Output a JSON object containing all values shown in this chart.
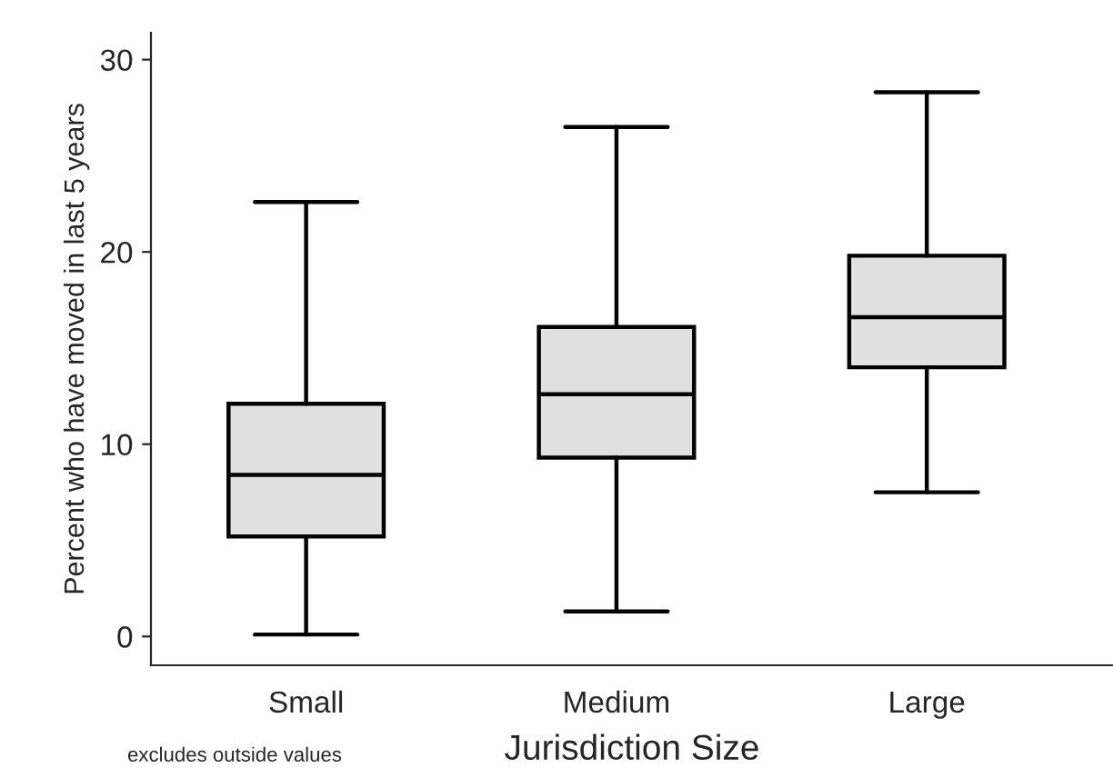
{
  "chart_data": {
    "type": "box",
    "xlabel": "Jurisdiction Size",
    "ylabel": "Percent who have moved in last 5 years",
    "categories": [
      "Small",
      "Medium",
      "Large"
    ],
    "boxes": [
      {
        "low": 0.1,
        "q1": 5.2,
        "median": 8.4,
        "q3": 12.1,
        "high": 22.6
      },
      {
        "low": 1.3,
        "q1": 9.3,
        "median": 12.6,
        "q3": 16.1,
        "high": 26.5
      },
      {
        "low": 7.5,
        "q1": 14.0,
        "median": 16.6,
        "q3": 19.8,
        "high": 28.3
      }
    ],
    "color": "#e0e0e0",
    "ylim": [
      -1.5,
      31.4
    ],
    "yticks": [
      0,
      10,
      20,
      30
    ],
    "grid": false,
    "annotations": [
      "excludes outside values"
    ]
  }
}
